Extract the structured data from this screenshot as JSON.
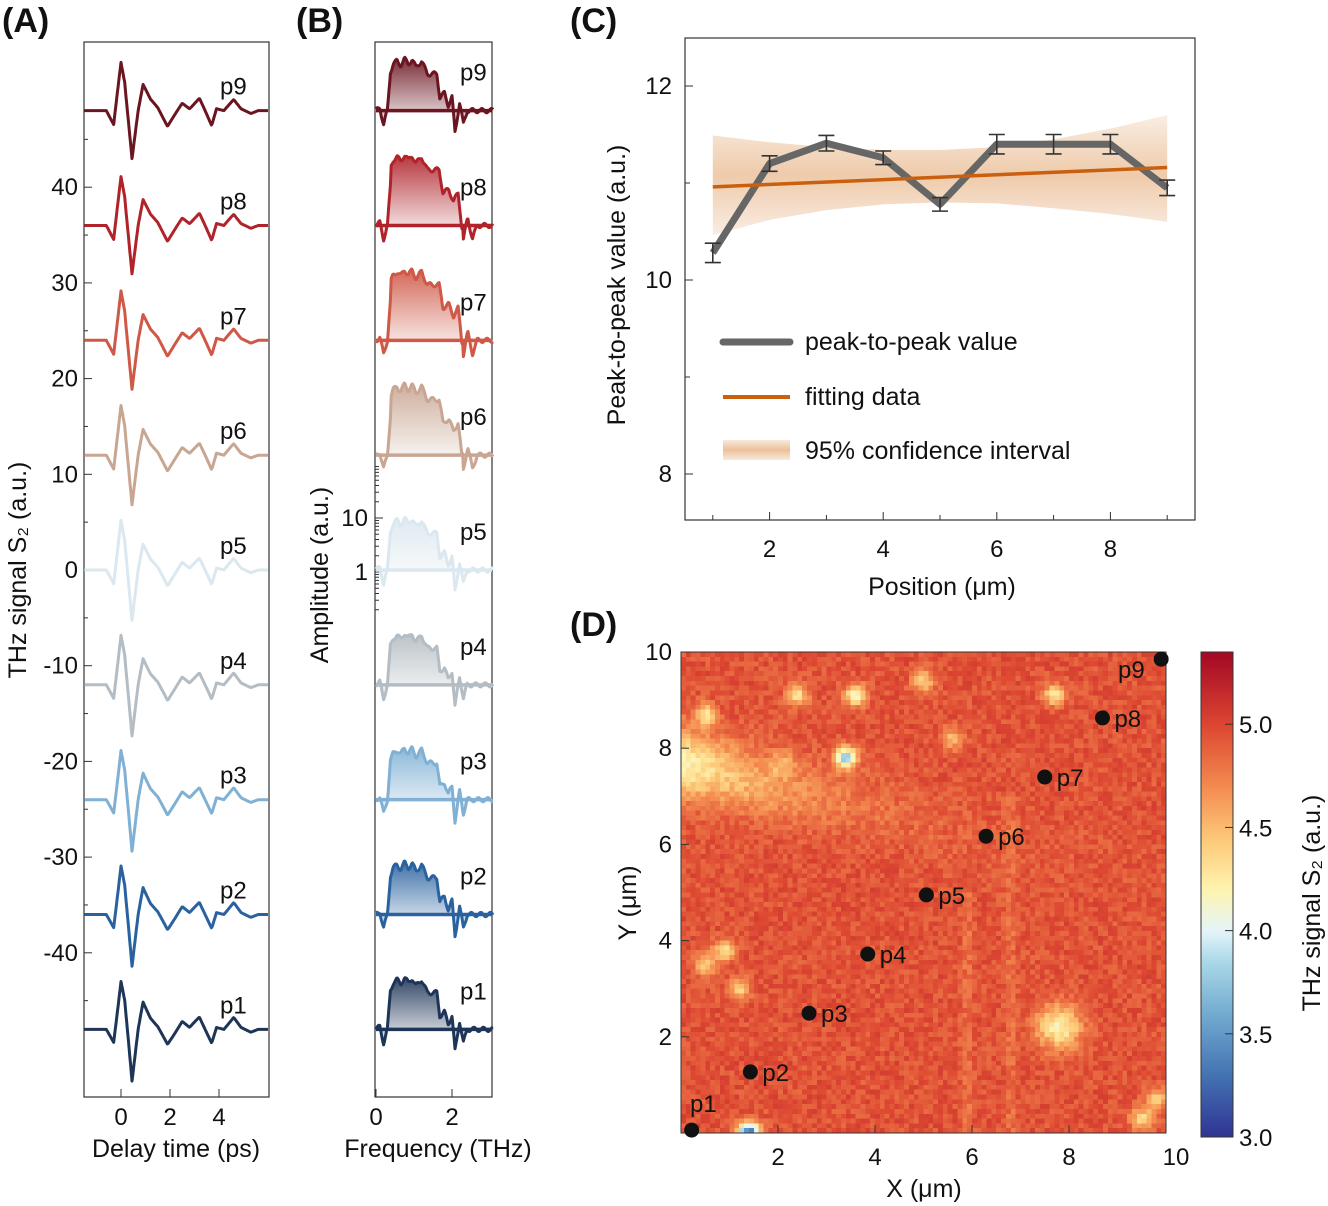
{
  "panel_labels": [
    "(A)",
    "(B)",
    "(C)",
    "(D)"
  ],
  "chart_data": [
    {
      "panel": "(A)",
      "type": "line",
      "xlabel": "Delay time (ps)",
      "ylabel": "THz signal S₂ (a.u.)",
      "xlim": [
        -1.5,
        6
      ],
      "ylim": [
        -55,
        55
      ],
      "xticks": [
        "0",
        "2",
        "4"
      ],
      "xtick_values": [
        0,
        2,
        4
      ],
      "yticks": [
        "40",
        "30",
        "20",
        "10",
        "0",
        "-10",
        "-20",
        "-30",
        "-40"
      ],
      "ytick_values": [
        40,
        30,
        20,
        10,
        0,
        -10,
        -20,
        -30,
        -40
      ],
      "waveform_template": {
        "t": [
          -1.5,
          -0.6,
          -0.3,
          0,
          0.15,
          0.45,
          0.7,
          0.9,
          1.2,
          1.5,
          1.9,
          2.5,
          2.8,
          3.2,
          3.7,
          3.9,
          4.2,
          4.6,
          4.9,
          5.3,
          5.6,
          6
        ],
        "s": [
          0,
          0,
          -1.4,
          5,
          3,
          -5.2,
          0,
          2.8,
          1.2,
          0.3,
          -1.6,
          0.8,
          0.2,
          1.3,
          -1.5,
          0.2,
          0,
          1.2,
          0.2,
          -0.3,
          0,
          0
        ]
      },
      "series": [
        {
          "name": "p1",
          "offset": -48,
          "color": "#1f3557"
        },
        {
          "name": "p2",
          "offset": -36,
          "color": "#2a62a0"
        },
        {
          "name": "p3",
          "offset": -24,
          "color": "#80b1d5"
        },
        {
          "name": "p4",
          "offset": -12,
          "color": "#b4bdc4"
        },
        {
          "name": "p5",
          "offset": 0,
          "color": "#dbe8f0"
        },
        {
          "name": "p6",
          "offset": 12,
          "color": "#c8a692"
        },
        {
          "name": "p7",
          "offset": 24,
          "color": "#cf5846"
        },
        {
          "name": "p8",
          "offset": 36,
          "color": "#b0232b"
        },
        {
          "name": "p9",
          "offset": 48,
          "color": "#6b1520"
        }
      ]
    },
    {
      "panel": "(B)",
      "type": "area",
      "xlabel": "Frequency (THz)",
      "ylabel": "Amplitude (a.u.)",
      "xlim": [
        0,
        3.1
      ],
      "yscale": "log",
      "xticks": [
        "0",
        "2"
      ],
      "xtick_values": [
        0,
        2
      ],
      "yticks": [
        "10",
        "1"
      ],
      "ytick_values": [
        10,
        1
      ],
      "spectrum_template_log10": {
        "f": [
          0,
          0.1,
          0.2,
          0.3,
          0.38,
          0.45,
          0.55,
          0.65,
          0.75,
          0.85,
          0.95,
          1.05,
          1.2,
          1.35,
          1.6,
          1.68,
          1.8,
          1.9,
          2.0,
          2.08,
          2.2,
          2.3,
          2.4,
          3.1
        ],
        "a": [
          0,
          0.05,
          -0.25,
          0,
          0.72,
          0.86,
          0.92,
          0.84,
          0.96,
          0.86,
          0.95,
          0.8,
          0.92,
          0.68,
          0.68,
          0.25,
          0.32,
          0.1,
          0.25,
          -0.4,
          0.15,
          -0.25,
          0,
          0
        ]
      },
      "series_names": [
        "p1",
        "p2",
        "p3",
        "p4",
        "p5",
        "p6",
        "p7",
        "p8",
        "p9"
      ]
    },
    {
      "panel": "(C)",
      "type": "line",
      "xlabel": "Position (μm)",
      "ylabel": "Peak-to-peak value (a.u.)",
      "xlim": [
        0.5,
        9.5
      ],
      "ylim": [
        7.5,
        12.5
      ],
      "xticks": [
        "2",
        "4",
        "6",
        "8"
      ],
      "xtick_values": [
        2,
        4,
        6,
        8
      ],
      "yticks": [
        "12",
        "10",
        "8"
      ],
      "ytick_values": [
        12,
        10,
        8
      ],
      "x": [
        1,
        2,
        3,
        4,
        5,
        6,
        7,
        8,
        9
      ],
      "series": [
        {
          "name": "peak-to-peak value",
          "values": [
            10.28,
            11.2,
            11.41,
            11.26,
            10.78,
            11.4,
            11.4,
            11.4,
            10.95
          ],
          "error": [
            0.07,
            0.05,
            0.05,
            0.04,
            0.04,
            0.07,
            0.07,
            0.07,
            0.05
          ],
          "color": "#666666"
        },
        {
          "name": "fitting data",
          "values_at_ends": [
            10.96,
            11.16
          ],
          "color": "#c8600f"
        },
        {
          "name": "95% confidence interval",
          "upper": [
            11.49,
            11.42,
            11.37,
            11.34,
            11.34,
            11.37,
            11.45,
            11.56,
            11.7
          ],
          "lower": [
            10.46,
            10.62,
            10.72,
            10.78,
            10.8,
            10.79,
            10.74,
            10.68,
            10.6
          ],
          "color": "#e9b98e"
        }
      ],
      "legend_position": "bottom-left"
    },
    {
      "panel": "(D)",
      "type": "heatmap",
      "xlabel": "X (μm)",
      "ylabel": "Y (μm)",
      "xlim": [
        0,
        10
      ],
      "ylim": [
        0,
        10
      ],
      "xticks": [
        "2",
        "4",
        "6",
        "8",
        "10"
      ],
      "xtick_values": [
        2,
        4,
        6,
        8,
        10
      ],
      "yticks": [
        "10",
        "8",
        "6",
        "4",
        "2"
      ],
      "ytick_values": [
        10,
        8,
        6,
        4,
        2
      ],
      "colorbar": {
        "label": "THz signal S₂ (a.u.)",
        "range": [
          3.0,
          5.35
        ],
        "ticks": [
          "5.0",
          "4.5",
          "4.0",
          "3.5",
          "3.0"
        ],
        "tick_values": [
          5.0,
          4.5,
          4.0,
          3.5,
          3.0
        ],
        "colormap": "RdYlBu_r"
      },
      "background_value": 4.95,
      "spots": [
        {
          "x": 0.5,
          "y": 8.7,
          "v": 4.3
        },
        {
          "x": 2.4,
          "y": 9.1,
          "v": 4.3
        },
        {
          "x": 3.6,
          "y": 9.1,
          "v": 4.1
        },
        {
          "x": 5.0,
          "y": 9.4,
          "v": 4.4
        },
        {
          "x": 5.6,
          "y": 8.2,
          "v": 4.5
        },
        {
          "x": 7.7,
          "y": 9.1,
          "v": 4.3
        },
        {
          "x": 3.4,
          "y": 7.8,
          "v": 3.8
        },
        {
          "x": 7.8,
          "y": 2.2,
          "v": 4.2
        },
        {
          "x": 0.9,
          "y": 3.8,
          "v": 4.3
        },
        {
          "x": 1.2,
          "y": 3.0,
          "v": 4.4
        },
        {
          "x": 0.5,
          "y": 3.5,
          "v": 4.4
        },
        {
          "x": 9.5,
          "y": 0.3,
          "v": 4.3
        },
        {
          "x": 9.8,
          "y": 0.7,
          "v": 4.4
        },
        {
          "x": 1.4,
          "y": 0.0,
          "v": 3.3
        },
        {
          "x": 2.1,
          "y": 7.7,
          "v": 4.6
        }
      ],
      "points": [
        {
          "name": "p1",
          "x": 0.22,
          "y": 0.06
        },
        {
          "name": "p2",
          "x": 1.43,
          "y": 1.27
        },
        {
          "name": "p3",
          "x": 2.64,
          "y": 2.49
        },
        {
          "name": "p4",
          "x": 3.85,
          "y": 3.72
        },
        {
          "name": "p5",
          "x": 5.06,
          "y": 4.95
        },
        {
          "name": "p6",
          "x": 6.29,
          "y": 6.17
        },
        {
          "name": "p7",
          "x": 7.5,
          "y": 7.4
        },
        {
          "name": "p8",
          "x": 8.69,
          "y": 8.63
        },
        {
          "name": "p9",
          "x": 9.9,
          "y": 9.85
        }
      ]
    }
  ]
}
